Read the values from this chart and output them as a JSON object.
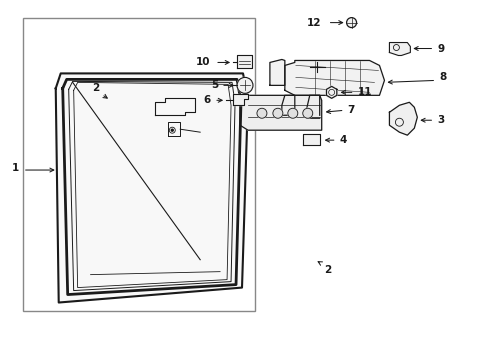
{
  "bg_color": "#ffffff",
  "line_color": "#1a1a1a",
  "figure_width": 4.89,
  "figure_height": 3.6,
  "dpi": 100
}
